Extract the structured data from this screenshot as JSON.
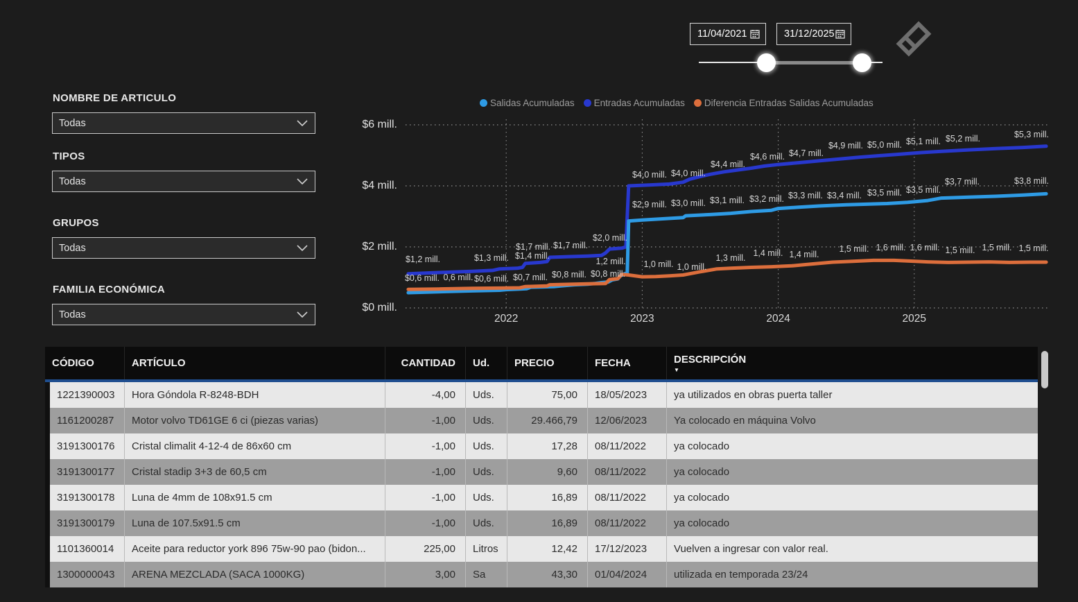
{
  "date_slicer": {
    "start": "11/04/2021",
    "end": "31/12/2025"
  },
  "clear_icon": "eraser-icon",
  "filters": [
    {
      "label": "NOMBRE DE ARTICULO",
      "value": "Todas"
    },
    {
      "label": "TIPOS",
      "value": "Todas"
    },
    {
      "label": "GRUPOS",
      "value": "Todas"
    },
    {
      "label": "FAMILIA ECONÓMICA",
      "value": "Todas"
    }
  ],
  "chart_data": {
    "type": "line",
    "x_axis": {
      "range": [
        2021.26,
        2026.0
      ],
      "ticks": [
        2022,
        2023,
        2024,
        2025
      ],
      "tick_labels": [
        "2022",
        "2023",
        "2024",
        "2025"
      ],
      "grid": true
    },
    "y_axis": {
      "range": [
        0,
        6
      ],
      "ticks": [
        0,
        2,
        4,
        6
      ],
      "tick_labels": [
        "$0 mill.",
        "$2 mill.",
        "$4 mill.",
        "$6 mill."
      ],
      "grid": true
    },
    "legend": [
      {
        "name": "Salidas Acumuladas",
        "color": "#2E9BE5"
      },
      {
        "name": "Entradas Acumuladas",
        "color": "#2838CE"
      },
      {
        "name": "Diferencia Entradas Salidas Acumuladas",
        "color": "#DC6E3C"
      }
    ],
    "series": [
      {
        "name": "Entradas Acumuladas",
        "color": "#2838CE",
        "points": [
          [
            2021.28,
            1.12
          ],
          [
            2021.5,
            1.16
          ],
          [
            2021.75,
            1.2
          ],
          [
            2021.9,
            1.23
          ],
          [
            2021.95,
            1.28
          ],
          [
            2022.08,
            1.3
          ],
          [
            2022.12,
            1.33
          ],
          [
            2022.14,
            1.46
          ],
          [
            2022.25,
            1.49
          ],
          [
            2022.3,
            1.52
          ],
          [
            2022.32,
            1.66
          ],
          [
            2022.45,
            1.68
          ],
          [
            2022.6,
            1.7
          ],
          [
            2022.7,
            1.72
          ],
          [
            2022.73,
            1.8
          ],
          [
            2022.76,
            1.93
          ],
          [
            2022.85,
            1.96
          ],
          [
            2022.88,
            2.0
          ],
          [
            2022.9,
            4.0
          ],
          [
            2023.05,
            4.03
          ],
          [
            2023.2,
            4.06
          ],
          [
            2023.3,
            4.12
          ],
          [
            2023.35,
            4.22
          ],
          [
            2023.42,
            4.3
          ],
          [
            2023.5,
            4.38
          ],
          [
            2023.6,
            4.46
          ],
          [
            2023.7,
            4.52
          ],
          [
            2023.8,
            4.58
          ],
          [
            2023.9,
            4.65
          ],
          [
            2024.0,
            4.7
          ],
          [
            2024.15,
            4.76
          ],
          [
            2024.3,
            4.82
          ],
          [
            2024.45,
            4.88
          ],
          [
            2024.6,
            4.94
          ],
          [
            2024.75,
            4.99
          ],
          [
            2024.9,
            5.04
          ],
          [
            2025.05,
            5.09
          ],
          [
            2025.2,
            5.13
          ],
          [
            2025.4,
            5.18
          ],
          [
            2025.6,
            5.22
          ],
          [
            2025.8,
            5.26
          ],
          [
            2025.97,
            5.3
          ]
        ],
        "labels": [
          "$1,2 mill.",
          "$1,3 mill.",
          "$1,4 mill.",
          "$1,7 mill.",
          "$1,7 mill.",
          "$2,0 mill.",
          "$4,0 mill.",
          "$4,0 mill.",
          "$4,4 mill.",
          "$4,6 mill.",
          "$4,7 mill.",
          "$4,9 mill.",
          "$5,0 mill.",
          "$5,1 mill.",
          "$5,2 mill.",
          "$5,3 mill."
        ]
      },
      {
        "name": "Salidas Acumuladas",
        "color": "#2E9BE5",
        "points": [
          [
            2021.28,
            0.5
          ],
          [
            2021.5,
            0.53
          ],
          [
            2021.75,
            0.56
          ],
          [
            2021.95,
            0.58
          ],
          [
            2022.0,
            0.6
          ],
          [
            2022.1,
            0.62
          ],
          [
            2022.15,
            0.63
          ],
          [
            2022.18,
            0.68
          ],
          [
            2022.35,
            0.7
          ],
          [
            2022.4,
            0.72
          ],
          [
            2022.5,
            0.76
          ],
          [
            2022.6,
            0.78
          ],
          [
            2022.65,
            0.8
          ],
          [
            2022.7,
            0.83
          ],
          [
            2022.75,
            0.85
          ],
          [
            2022.78,
            0.92
          ],
          [
            2022.82,
            0.95
          ],
          [
            2022.84,
            1.05
          ],
          [
            2022.87,
            1.12
          ],
          [
            2022.89,
            1.15
          ],
          [
            2022.9,
            2.85
          ],
          [
            2023.0,
            2.88
          ],
          [
            2023.15,
            2.92
          ],
          [
            2023.3,
            2.96
          ],
          [
            2023.32,
            3.02
          ],
          [
            2023.5,
            3.06
          ],
          [
            2023.65,
            3.1
          ],
          [
            2023.8,
            3.16
          ],
          [
            2023.95,
            3.2
          ],
          [
            2024.0,
            3.26
          ],
          [
            2024.15,
            3.3
          ],
          [
            2024.3,
            3.34
          ],
          [
            2024.5,
            3.38
          ],
          [
            2024.65,
            3.4
          ],
          [
            2024.8,
            3.42
          ],
          [
            2024.95,
            3.46
          ],
          [
            2025.05,
            3.5
          ],
          [
            2025.1,
            3.52
          ],
          [
            2025.2,
            3.6
          ],
          [
            2025.4,
            3.63
          ],
          [
            2025.6,
            3.66
          ],
          [
            2025.8,
            3.7
          ],
          [
            2025.97,
            3.74
          ]
        ],
        "labels": [
          "$0,6 mill.",
          "$0,6 mill.",
          "$0,7 mill.",
          "$0,8 mill.",
          "$0,8 mill.",
          "$2,9 mill.",
          "$3,0 mill.",
          "$3,1 mill.",
          "$3,2 mill.",
          "$3,3 mill.",
          "$3,4 mill.",
          "$3,5 mill.",
          "$3,5 mill.",
          "$3,7 mill.",
          "$3,8 mill."
        ]
      },
      {
        "name": "Diferencia Entradas Salidas Acumuladas",
        "color": "#DC6E3C",
        "points": [
          [
            2021.28,
            0.61
          ],
          [
            2021.5,
            0.62
          ],
          [
            2021.75,
            0.64
          ],
          [
            2021.95,
            0.65
          ],
          [
            2022.1,
            0.66
          ],
          [
            2022.14,
            0.7
          ],
          [
            2022.3,
            0.72
          ],
          [
            2022.32,
            0.76
          ],
          [
            2022.5,
            0.78
          ],
          [
            2022.6,
            0.79
          ],
          [
            2022.73,
            0.8
          ],
          [
            2022.76,
            0.93
          ],
          [
            2022.82,
            0.96
          ],
          [
            2022.85,
            1.1
          ],
          [
            2022.9,
            1.08
          ],
          [
            2023.0,
            1.02
          ],
          [
            2023.1,
            1.03
          ],
          [
            2023.2,
            1.05
          ],
          [
            2023.3,
            1.08
          ],
          [
            2023.35,
            1.12
          ],
          [
            2023.42,
            1.18
          ],
          [
            2023.5,
            1.24
          ],
          [
            2023.55,
            1.28
          ],
          [
            2023.65,
            1.3
          ],
          [
            2023.8,
            1.33
          ],
          [
            2023.95,
            1.35
          ],
          [
            2024.1,
            1.38
          ],
          [
            2024.25,
            1.44
          ],
          [
            2024.4,
            1.5
          ],
          [
            2024.55,
            1.53
          ],
          [
            2024.7,
            1.56
          ],
          [
            2024.85,
            1.56
          ],
          [
            2024.95,
            1.54
          ],
          [
            2025.1,
            1.51
          ],
          [
            2025.25,
            1.49
          ],
          [
            2025.4,
            1.5
          ],
          [
            2025.55,
            1.51
          ],
          [
            2025.7,
            1.49
          ],
          [
            2025.85,
            1.5
          ],
          [
            2025.97,
            1.5
          ]
        ],
        "labels": [
          "0,6 mill.",
          "1,2 mill.",
          "1,0 mill.",
          "1,0 mill.",
          "1,3 mill.",
          "1,4 mill.",
          "1,4 mill.",
          "1,5 mill.",
          "1,6 mill.",
          "1,6 mill.",
          "1,5 mill.",
          "1,5 mill.",
          "1,5 mill."
        ]
      }
    ],
    "point_labels": [
      {
        "x": 25,
        "y": 202,
        "text": "$1,2 mill."
      },
      {
        "x": 24,
        "y": 229,
        "text": "$0,6 mill."
      },
      {
        "x": 76,
        "y": 228,
        "text": "0,6 mill."
      },
      {
        "x": 124,
        "y": 200,
        "text": "$1,3 mill."
      },
      {
        "x": 124,
        "y": 230,
        "text": "$0,6 mill."
      },
      {
        "x": 183,
        "y": 197,
        "text": "$1,4 mill."
      },
      {
        "x": 184,
        "y": 184,
        "text": "$1,7 mill."
      },
      {
        "x": 238,
        "y": 182,
        "text": "$1,7 mill."
      },
      {
        "x": 180,
        "y": 228,
        "text": "$0,7 mill."
      },
      {
        "x": 236,
        "y": 224,
        "text": "$0,8 mill."
      },
      {
        "x": 292,
        "y": 223,
        "text": "$0,8 mill."
      },
      {
        "x": 295,
        "y": 171,
        "text": "$2,0 mill."
      },
      {
        "x": 296,
        "y": 205,
        "text": "1,2 mill."
      },
      {
        "x": 352,
        "y": 80,
        "text": "$4,0 mill."
      },
      {
        "x": 408,
        "y": 78,
        "text": "$4,0 mill."
      },
      {
        "x": 365,
        "y": 209,
        "text": "1,0 mill."
      },
      {
        "x": 413,
        "y": 213,
        "text": "1,0 mill."
      },
      {
        "x": 352,
        "y": 123,
        "text": "$2,9 mill."
      },
      {
        "x": 408,
        "y": 121,
        "text": "$3,0 mill."
      },
      {
        "x": 464,
        "y": 117,
        "text": "$3,1 mill."
      },
      {
        "x": 521,
        "y": 115,
        "text": "$3,2 mill."
      },
      {
        "x": 577,
        "y": 110,
        "text": "$3,3 mill."
      },
      {
        "x": 633,
        "y": 110,
        "text": "$3,4 mill."
      },
      {
        "x": 465,
        "y": 65,
        "text": "$4,4 mill."
      },
      {
        "x": 522,
        "y": 54,
        "text": "$4,6 mill."
      },
      {
        "x": 578,
        "y": 49,
        "text": "$4,7 mill."
      },
      {
        "x": 635,
        "y": 38,
        "text": "$4,9 mill."
      },
      {
        "x": 691,
        "y": 37,
        "text": "$5,0 mill."
      },
      {
        "x": 747,
        "y": 32,
        "text": "$5,1 mill."
      },
      {
        "x": 804,
        "y": 28,
        "text": "$5,2 mill."
      },
      {
        "x": 903,
        "y": 22,
        "text": "$5,3 mill."
      },
      {
        "x": 691,
        "y": 106,
        "text": "$3,5 mill."
      },
      {
        "x": 747,
        "y": 102,
        "text": "$3,5 mill."
      },
      {
        "x": 803,
        "y": 90,
        "text": "$3,7 mill."
      },
      {
        "x": 903,
        "y": 89,
        "text": "$3,8 mill."
      },
      {
        "x": 469,
        "y": 200,
        "text": "1,3 mill."
      },
      {
        "x": 523,
        "y": 193,
        "text": "1,4 mill."
      },
      {
        "x": 575,
        "y": 195,
        "text": "1,4 mill."
      },
      {
        "x": 647,
        "y": 187,
        "text": "1,5 mill."
      },
      {
        "x": 700,
        "y": 185,
        "text": "1,6 mill."
      },
      {
        "x": 749,
        "y": 185,
        "text": "1,6 mill."
      },
      {
        "x": 800,
        "y": 189,
        "text": "1,5 mill."
      },
      {
        "x": 853,
        "y": 185,
        "text": "1,5 mill."
      },
      {
        "x": 906,
        "y": 186,
        "text": "1,5 mill."
      }
    ]
  },
  "table": {
    "columns": [
      "CÓDIGO",
      "ARTÍCULO",
      "CANTIDAD",
      "Ud.",
      "PRECIO",
      "FECHA",
      "DESCRIPCIÓN"
    ],
    "sorted_column": "DESCRIPCIÓN",
    "sort_direction": "desc",
    "rows": [
      [
        "1221390003",
        "Hora Góndola R-8248-BDH",
        "-4,00",
        "Uds.",
        "75,00",
        "18/05/2023",
        "ya utilizados en obras puerta taller"
      ],
      [
        "1161200287",
        "Motor volvo TD61GE 6 ci (piezas varias)",
        "-1,00",
        "Uds.",
        "29.466,79",
        "12/06/2023",
        "Ya colocado en máquina Volvo"
      ],
      [
        "3191300176",
        "Cristal climalit 4-12-4 de 86x60 cm",
        "-1,00",
        "Uds.",
        "17,28",
        "08/11/2022",
        "ya colocado"
      ],
      [
        "3191300177",
        "Cristal stadip 3+3 de 60,5 cm",
        "-1,00",
        "Uds.",
        "9,60",
        "08/11/2022",
        "ya colocado"
      ],
      [
        "3191300178",
        "Luna de 4mm de 108x91.5 cm",
        "-1,00",
        "Uds.",
        "16,89",
        "08/11/2022",
        "ya colocado"
      ],
      [
        "3191300179",
        "Luna  de 107.5x91.5 cm",
        "-1,00",
        "Uds.",
        "16,89",
        "08/11/2022",
        "ya colocado"
      ],
      [
        "1101360014",
        "Aceite para reductor york 896 75w-90 pao (bidon...",
        "225,00",
        "Litros",
        "12,42",
        "17/12/2023",
        "Vuelven a ingresar con valor real."
      ],
      [
        "1300000043",
        "ARENA MEZCLADA (SACA 1000KG)",
        "3,00",
        "Sa",
        "43,30",
        "01/04/2024",
        "utilizada en temporada 23/24"
      ]
    ]
  }
}
